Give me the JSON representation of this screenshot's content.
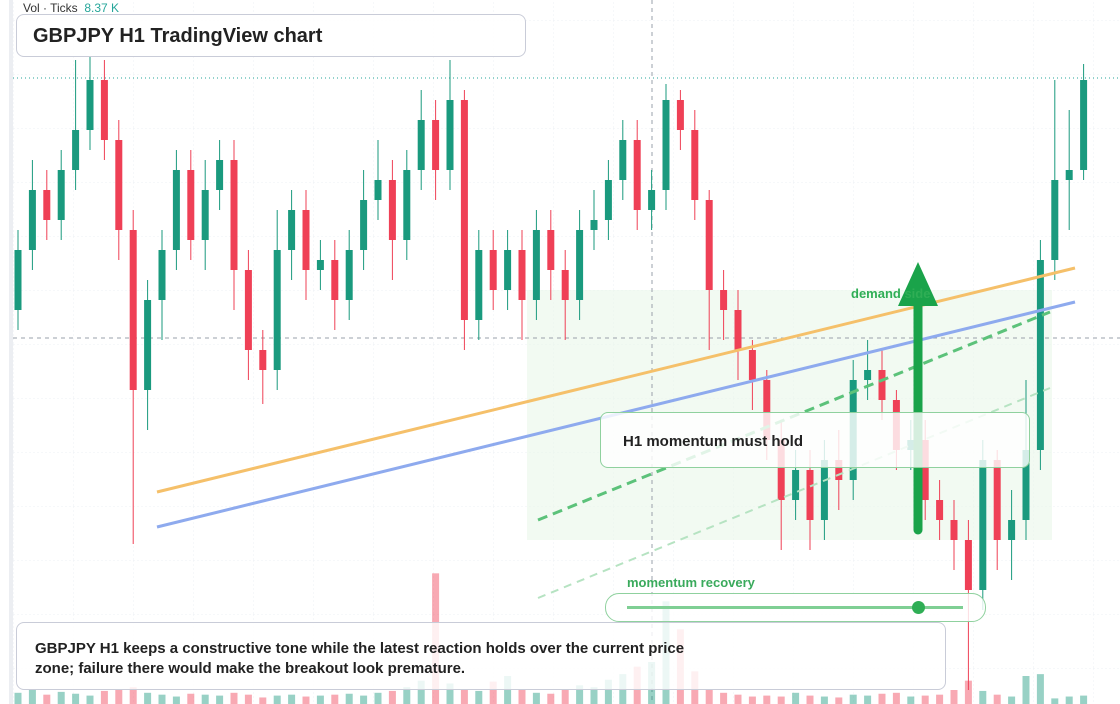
{
  "header": {
    "title": "GBPJPY H1 TradingView chart",
    "legend_label": "Vol · Ticks",
    "legend_value": "8.37 K"
  },
  "chart_data": {
    "type": "candlestick",
    "up_color": "#1a9a7e",
    "down_color": "#ef4056",
    "ylim": [
      196.48,
      200.0
    ],
    "volume_lim": [
      0,
      15
    ],
    "open": [
      198.45,
      198.75,
      199.05,
      198.9,
      199.15,
      199.35,
      199.6,
      199.3,
      198.85,
      198.05,
      198.5,
      198.75,
      199.15,
      198.8,
      199.05,
      199.2,
      198.65,
      198.25,
      198.15,
      198.75,
      198.95,
      198.65,
      198.7,
      198.5,
      198.75,
      199.0,
      199.1,
      198.8,
      199.15,
      199.4,
      199.15,
      199.5,
      198.4,
      198.75,
      198.55,
      198.75,
      198.5,
      198.85,
      198.65,
      198.5,
      198.85,
      198.9,
      199.1,
      199.3,
      198.95,
      199.05,
      199.5,
      199.35,
      199.0,
      198.55,
      198.45,
      198.25,
      198.1,
      197.8,
      197.5,
      197.65,
      197.4,
      197.7,
      197.6,
      198.1,
      198.15,
      198.0,
      197.75,
      197.8,
      197.5,
      197.4,
      197.3,
      197.05,
      197.7,
      197.3,
      197.4,
      197.75,
      198.7,
      199.1,
      199.15
    ],
    "high": [
      198.85,
      199.2,
      199.15,
      199.25,
      199.7,
      199.72,
      199.7,
      199.4,
      198.95,
      198.6,
      198.85,
      199.25,
      199.25,
      199.2,
      199.3,
      199.3,
      198.75,
      198.35,
      198.95,
      199.05,
      199.05,
      198.8,
      198.8,
      198.85,
      199.15,
      199.3,
      199.2,
      199.25,
      199.55,
      199.5,
      199.7,
      199.55,
      198.85,
      198.85,
      198.85,
      198.85,
      198.95,
      198.95,
      198.75,
      198.95,
      199.05,
      199.2,
      199.4,
      199.4,
      199.15,
      199.58,
      199.55,
      199.45,
      199.05,
      198.65,
      198.55,
      198.3,
      198.15,
      197.9,
      197.75,
      197.75,
      197.8,
      197.85,
      198.2,
      198.3,
      198.25,
      198.05,
      197.9,
      197.9,
      197.6,
      197.5,
      197.4,
      197.8,
      197.75,
      197.55,
      198.1,
      198.8,
      199.6,
      199.45,
      199.68
    ],
    "low": [
      198.35,
      198.65,
      198.8,
      198.8,
      199.05,
      199.25,
      199.2,
      198.7,
      197.28,
      197.85,
      198.3,
      198.65,
      198.7,
      198.65,
      198.95,
      198.45,
      198.1,
      197.98,
      198.05,
      198.6,
      198.5,
      198.55,
      198.35,
      198.4,
      198.65,
      198.9,
      198.6,
      198.7,
      199.05,
      199.0,
      199.05,
      198.25,
      198.3,
      198.45,
      198.45,
      198.3,
      198.4,
      198.5,
      198.3,
      198.4,
      198.75,
      198.8,
      199.0,
      198.85,
      198.85,
      198.95,
      199.25,
      198.9,
      198.25,
      198.3,
      198.1,
      197.95,
      197.7,
      197.25,
      197.4,
      197.25,
      197.3,
      197.45,
      197.5,
      198.0,
      197.9,
      197.65,
      197.65,
      197.4,
      197.3,
      197.15,
      196.55,
      196.95,
      197.15,
      197.1,
      197.3,
      197.65,
      198.6,
      198.85,
      199.1
    ],
    "close": [
      198.75,
      199.05,
      198.9,
      199.15,
      199.35,
      199.6,
      199.3,
      198.85,
      198.05,
      198.5,
      198.75,
      199.15,
      198.8,
      199.05,
      199.2,
      198.65,
      198.25,
      198.15,
      198.75,
      198.95,
      198.65,
      198.7,
      198.5,
      198.75,
      199.0,
      199.1,
      198.8,
      199.15,
      199.4,
      199.15,
      199.5,
      198.4,
      198.75,
      198.55,
      198.75,
      198.5,
      198.85,
      198.65,
      198.5,
      198.85,
      198.9,
      199.1,
      199.3,
      198.95,
      199.05,
      199.5,
      199.35,
      199.0,
      198.55,
      198.45,
      198.25,
      198.1,
      197.8,
      197.5,
      197.65,
      197.4,
      197.7,
      197.6,
      198.1,
      198.15,
      198.0,
      197.75,
      197.8,
      197.5,
      197.4,
      197.3,
      197.05,
      197.7,
      197.3,
      197.4,
      197.75,
      198.7,
      199.1,
      199.15,
      199.6
    ],
    "volume": [
      1.2,
      1.5,
      1,
      1.3,
      1.1,
      0.9,
      1.4,
      1.6,
      1.8,
      1.2,
      1,
      0.8,
      1.1,
      1,
      0.9,
      1.2,
      1,
      0.7,
      0.9,
      1,
      0.8,
      0.9,
      1,
      1.1,
      0.9,
      1.2,
      1.4,
      1.8,
      2.5,
      14,
      2.2,
      1.6,
      1.4,
      2.4,
      3,
      1.5,
      1.2,
      1.1,
      1.6,
      2,
      1.8,
      2.6,
      3.2,
      4,
      4.5,
      11,
      8,
      3.5,
      1.5,
      1.2,
      1,
      0.8,
      0.9,
      0.8,
      1.2,
      0.9,
      0.8,
      0.7,
      1,
      0.9,
      1.1,
      1.2,
      0.8,
      0.9,
      1,
      1.5,
      2.5,
      1.4,
      1,
      0.8,
      3,
      3.2,
      0.6,
      0.8,
      0.9
    ]
  },
  "annotations": {
    "zone_label": "demand side",
    "callout": "H1 momentum must hold",
    "slider_label": "momentum recovery",
    "summary": "GBPJPY H1 keeps a constructive tone while the latest reaction holds over the current price zone; failure there would make the breakout look premature."
  }
}
